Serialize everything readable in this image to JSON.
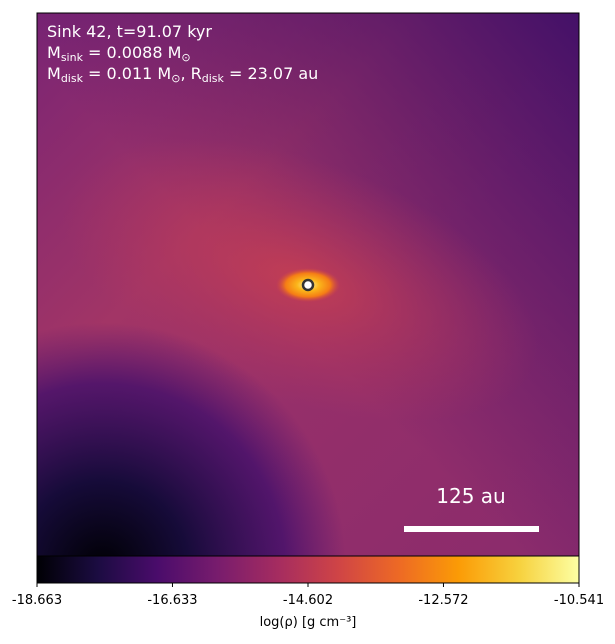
{
  "chart_data": {
    "type": "heatmap",
    "annotations": [
      [
        {
          "text": "Sink 42, t=91.07 kyr",
          "sub": false
        }
      ],
      [
        {
          "text": "M",
          "sub": false
        },
        {
          "text": "sink",
          "sub": true
        },
        {
          "text": " = 0.0088 M",
          "sub": false
        },
        {
          "text": "⊙",
          "sub": true
        }
      ],
      [
        {
          "text": "M",
          "sub": false
        },
        {
          "text": "disk",
          "sub": true
        },
        {
          "text": " = 0.011 M",
          "sub": false
        },
        {
          "text": "⊙",
          "sub": true
        },
        {
          "text": ", R",
          "sub": false
        },
        {
          "text": "disk",
          "sub": true
        },
        {
          "text": " = 23.07 au",
          "sub": false
        }
      ]
    ],
    "scale_bar_label": "125 au",
    "colorbar": {
      "label": "log(ρ) [g cm⁻³]",
      "colormap": "inferno",
      "lim": [
        -18.663,
        -10.541
      ],
      "ticks": [
        -18.663,
        -16.633,
        -14.602,
        -12.572,
        -10.541
      ]
    }
  }
}
